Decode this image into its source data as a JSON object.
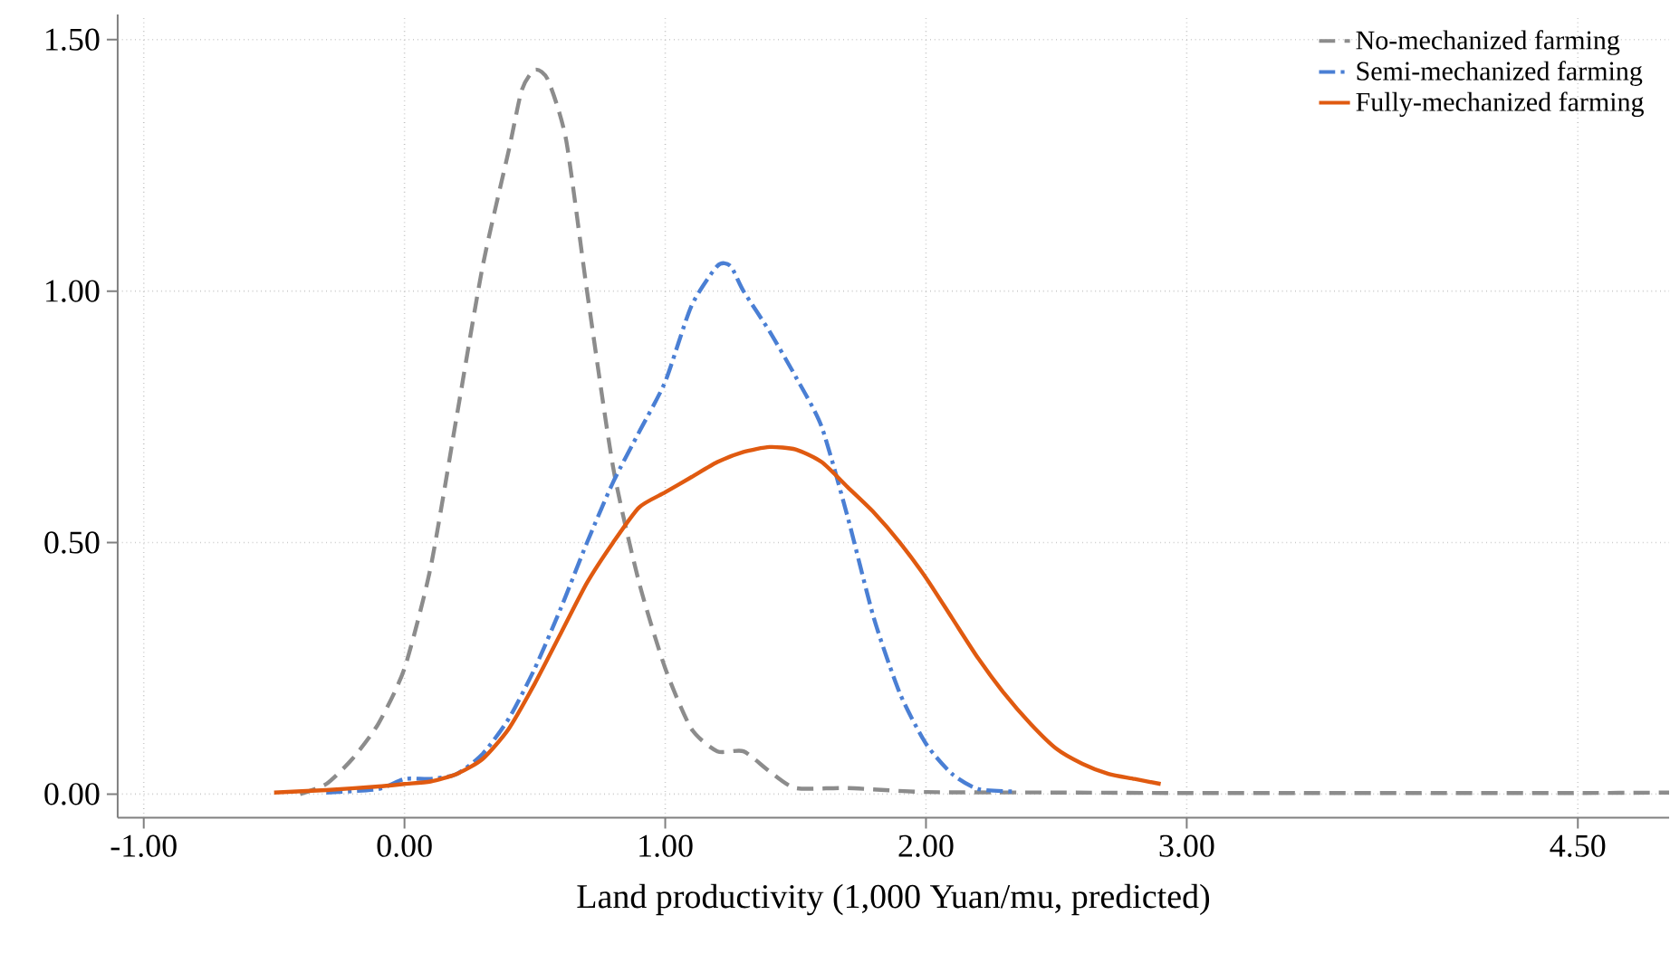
{
  "chart_data": {
    "type": "line",
    "xlabel": "Land productivity (1,000 Yuan/mu, predicted)",
    "xlim": [
      -1.1,
      4.85
    ],
    "ylim": [
      -0.047,
      1.55
    ],
    "xticks": [
      {
        "value": -1,
        "label": "-1.00"
      },
      {
        "value": 0,
        "label": "0.00"
      },
      {
        "value": 1,
        "label": "1.00"
      },
      {
        "value": 2,
        "label": "2.00"
      },
      {
        "value": 3,
        "label": "3.00"
      },
      {
        "value": 4.5,
        "label": "4.50"
      }
    ],
    "yticks": [
      {
        "value": 0,
        "label": "0.00"
      },
      {
        "value": 0.5,
        "label": "0.50"
      },
      {
        "value": 1,
        "label": "1.00"
      },
      {
        "value": 1.5,
        "label": "1.50"
      }
    ],
    "grid": true,
    "legend": "top right",
    "marker": "none",
    "series": [
      {
        "name": "No-mechanized farming",
        "color": "#8c8c8c",
        "line_style": "dashed",
        "x": [
          -0.4,
          -0.3,
          -0.2,
          -0.1,
          0,
          0.1,
          0.2,
          0.3,
          0.4,
          0.45,
          0.5,
          0.55,
          0.62,
          0.7,
          0.8,
          0.9,
          1.0,
          1.1,
          1.2,
          1.3,
          1.4,
          1.5,
          1.7,
          2.0,
          2.5,
          3.0,
          3.5,
          4.0,
          4.5,
          4.85
        ],
        "values": [
          0,
          0.02,
          0.07,
          0.14,
          0.25,
          0.45,
          0.75,
          1.05,
          1.28,
          1.4,
          1.44,
          1.42,
          1.3,
          1.0,
          0.65,
          0.42,
          0.25,
          0.13,
          0.085,
          0.085,
          0.045,
          0.012,
          0.012,
          0.004,
          0.003,
          0.002,
          0.002,
          0.002,
          0.002,
          0.003
        ]
      },
      {
        "name": "Semi-mechanized farming",
        "color": "#4a7fd4",
        "line_style": "dashdot",
        "x": [
          -0.3,
          -0.1,
          0,
          0.1,
          0.2,
          0.3,
          0.4,
          0.5,
          0.6,
          0.7,
          0.8,
          0.9,
          1.0,
          1.1,
          1.2,
          1.25,
          1.3,
          1.4,
          1.5,
          1.6,
          1.7,
          1.8,
          1.9,
          2.0,
          2.1,
          2.2,
          2.35
        ],
        "values": [
          0.003,
          0.01,
          0.03,
          0.03,
          0.04,
          0.08,
          0.15,
          0.25,
          0.37,
          0.5,
          0.62,
          0.72,
          0.82,
          0.97,
          1.05,
          1.05,
          1.0,
          0.92,
          0.83,
          0.73,
          0.55,
          0.35,
          0.2,
          0.1,
          0.04,
          0.01,
          0.005
        ]
      },
      {
        "name": "Fully-mechanized farming",
        "color": "#e05a10",
        "line_style": "solid",
        "x": [
          -0.5,
          -0.3,
          -0.1,
          0,
          0.1,
          0.2,
          0.3,
          0.4,
          0.5,
          0.6,
          0.7,
          0.8,
          0.9,
          1.0,
          1.1,
          1.2,
          1.3,
          1.4,
          1.5,
          1.6,
          1.7,
          1.8,
          1.9,
          2.0,
          2.1,
          2.2,
          2.3,
          2.4,
          2.5,
          2.6,
          2.7,
          2.8,
          2.9
        ],
        "values": [
          0.003,
          0.008,
          0.015,
          0.02,
          0.025,
          0.04,
          0.07,
          0.13,
          0.22,
          0.32,
          0.42,
          0.5,
          0.57,
          0.6,
          0.63,
          0.66,
          0.68,
          0.69,
          0.685,
          0.66,
          0.61,
          0.56,
          0.5,
          0.43,
          0.35,
          0.27,
          0.2,
          0.14,
          0.09,
          0.06,
          0.04,
          0.03,
          0.02
        ]
      }
    ]
  }
}
